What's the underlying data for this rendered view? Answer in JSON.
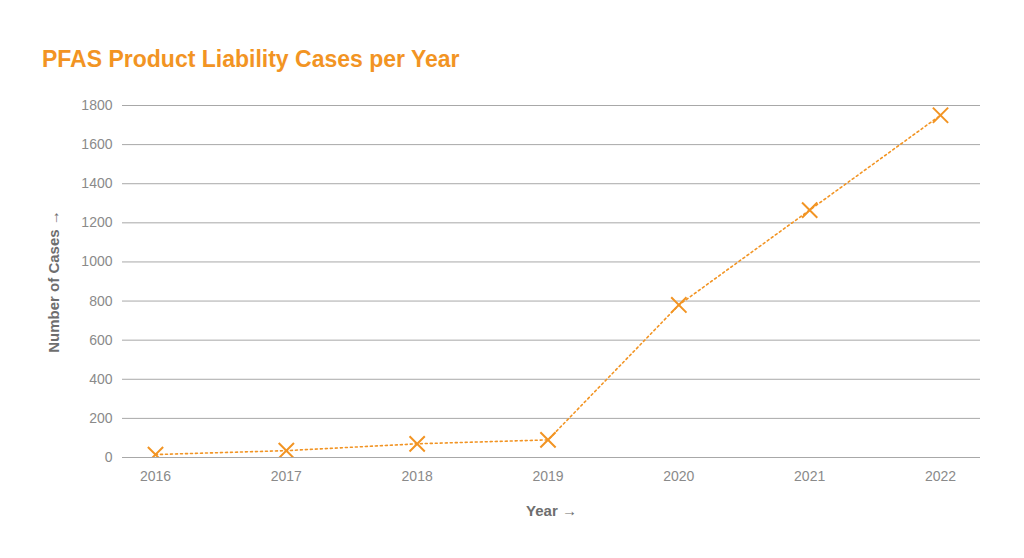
{
  "chart_data": {
    "type": "line",
    "title": "PFAS Product Liability Cases per Year",
    "x_label": "Year",
    "y_label": "Number of Cases",
    "x": [
      2016,
      2017,
      2018,
      2019,
      2020,
      2021,
      2022
    ],
    "values": [
      15,
      35,
      70,
      90,
      780,
      1265,
      1750
    ],
    "color": "#f29423",
    "marker": "x",
    "line_style": "dotted",
    "xlim": [
      2016,
      2022
    ],
    "xticks": [
      2016,
      2017,
      2018,
      2019,
      2020,
      2021,
      2022
    ],
    "ylim": [
      0,
      1800
    ],
    "yticks": [
      0,
      200,
      400,
      600,
      800,
      1000,
      1200,
      1400,
      1600,
      1800
    ],
    "grid": true
  }
}
